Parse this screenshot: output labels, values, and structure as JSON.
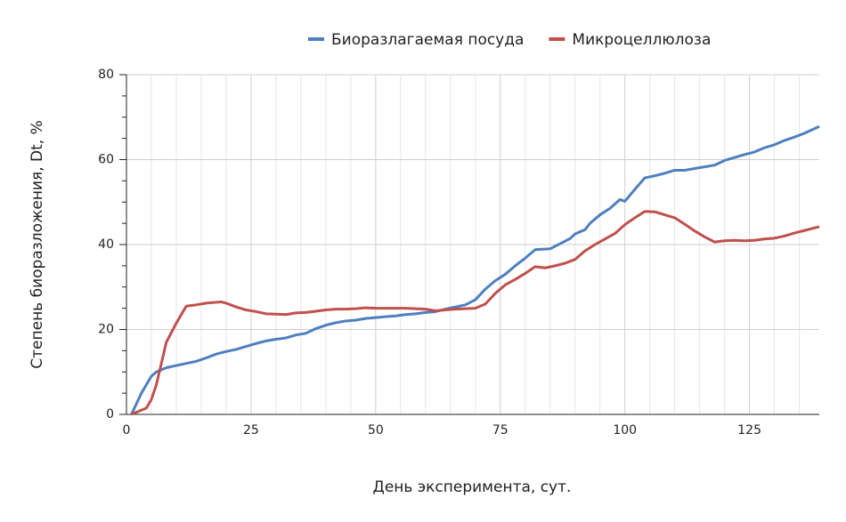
{
  "chart_data": {
    "type": "line",
    "x_label": "День эксперимента, сут.",
    "y_label": "Степень биоразложения, Dt, %",
    "xlim": [
      0,
      139
    ],
    "ylim": [
      0,
      80
    ],
    "xticks": [
      0,
      25,
      50,
      75,
      100,
      125
    ],
    "yticks": [
      0,
      20,
      40,
      60,
      80
    ],
    "minor_xticks": [
      5,
      10,
      15,
      20,
      30,
      35,
      40,
      45,
      55,
      60,
      65,
      70,
      80,
      85,
      90,
      95,
      105,
      110,
      115,
      120,
      130,
      135
    ],
    "minor_yticks": [
      5,
      10,
      15,
      25,
      30,
      35,
      45,
      50,
      55,
      65,
      70,
      75
    ],
    "grid": true,
    "legend": "top",
    "series": [
      {
        "name": "Биоразлагаемая посуда",
        "color": "#4e7fbf",
        "x": [
          1,
          3,
          5,
          6,
          8,
          10,
          12,
          14,
          16,
          18,
          20,
          22,
          24,
          26,
          28,
          30,
          32,
          34,
          36,
          38,
          40,
          42,
          44,
          46,
          48,
          50,
          52,
          54,
          56,
          58,
          60,
          62,
          64,
          66,
          68,
          70,
          72,
          74,
          76,
          78,
          80,
          82,
          85,
          87,
          89,
          90,
          92,
          93,
          95,
          97,
          99,
          100,
          102,
          104,
          106,
          108,
          110,
          112,
          114,
          116,
          118,
          120,
          122,
          124,
          126,
          128,
          130,
          132,
          134,
          136,
          139
        ],
        "values": [
          0,
          5,
          9,
          10,
          11,
          11.5,
          12,
          12.5,
          13.3,
          14.2,
          14.8,
          15.3,
          16,
          16.7,
          17.3,
          17.7,
          18,
          18.7,
          19.1,
          20.2,
          21,
          21.6,
          22,
          22.2,
          22.6,
          22.8,
          23,
          23.2,
          23.5,
          23.7,
          24,
          24.2,
          24.8,
          25.3,
          25.8,
          27,
          29.5,
          31.5,
          33,
          35,
          36.8,
          38.8,
          39,
          40.2,
          41.4,
          42.5,
          43.5,
          45,
          47,
          48.5,
          50.6,
          50.2,
          53,
          55.7,
          56.2,
          56.8,
          57.5,
          57.5,
          57.9,
          58.3,
          58.7,
          59.8,
          60.5,
          61.2,
          61.8,
          62.8,
          63.5,
          64.5,
          65.3,
          66.2,
          67.8
        ]
      },
      {
        "name": "Микроцеллюлоза",
        "color": "#c0504d",
        "x": [
          1,
          4,
          5,
          6,
          8,
          10,
          12,
          14,
          16,
          18,
          19,
          20,
          22,
          24,
          26,
          28,
          30,
          32,
          34,
          36,
          38,
          40,
          42,
          44,
          46,
          48,
          50,
          52,
          54,
          56,
          58,
          60,
          62,
          64,
          66,
          68,
          70,
          72,
          74,
          76,
          78,
          80,
          82,
          84,
          86,
          88,
          90,
          92,
          94,
          96,
          98,
          100,
          102,
          104,
          106,
          108,
          110,
          112,
          114,
          116,
          118,
          120,
          122,
          124,
          126,
          128,
          130,
          132,
          134,
          136,
          139
        ],
        "values": [
          0,
          1.5,
          3.5,
          7,
          17,
          21.5,
          25.5,
          25.8,
          26.2,
          26.4,
          26.5,
          26.2,
          25.3,
          24.6,
          24.2,
          23.7,
          23.6,
          23.5,
          23.9,
          24,
          24.3,
          24.6,
          24.8,
          24.8,
          24.9,
          25.1,
          25,
          25,
          25,
          25,
          24.9,
          24.8,
          24.4,
          24.6,
          24.8,
          24.9,
          25,
          26,
          28.5,
          30.5,
          31.8,
          33.2,
          34.8,
          34.5,
          35,
          35.6,
          36.5,
          38.5,
          40,
          41.3,
          42.6,
          44.7,
          46.3,
          47.8,
          47.7,
          47,
          46.3,
          44.8,
          43.2,
          41.8,
          40.6,
          40.9,
          41,
          40.9,
          41,
          41.3,
          41.5,
          42,
          42.7,
          43.3,
          44.2
        ]
      }
    ]
  }
}
